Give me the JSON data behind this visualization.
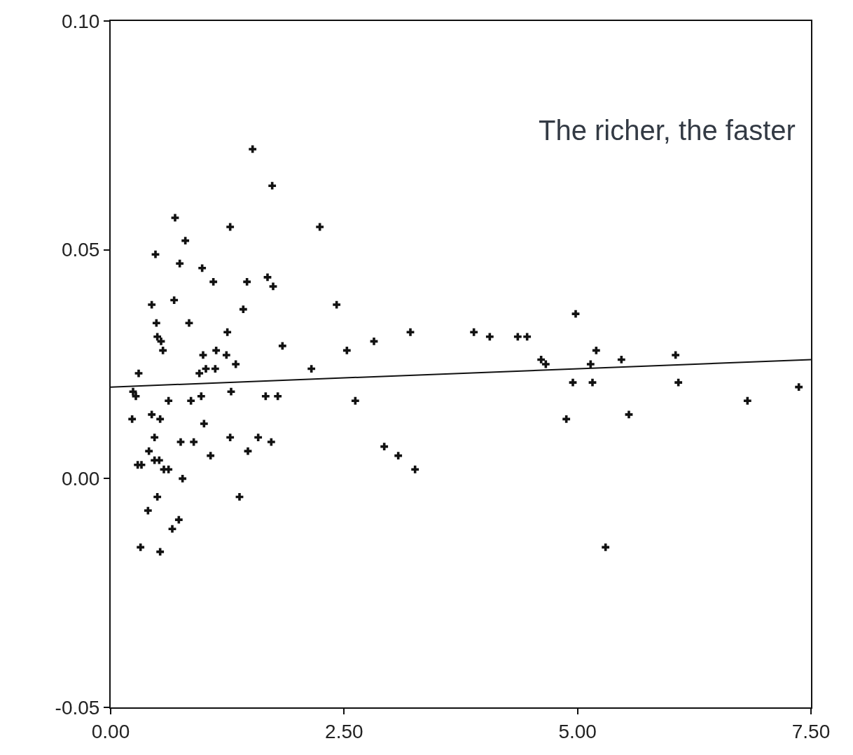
{
  "chart_data": {
    "type": "scatter",
    "marker": "cross",
    "annotations": [
      "The richer, the faster"
    ],
    "xlim": [
      0,
      7.5
    ],
    "ylim": [
      -0.05,
      0.1
    ],
    "xticks": [
      {
        "value": 0,
        "label": "0.00"
      },
      {
        "value": 2.5,
        "label": "2.50"
      },
      {
        "value": 5,
        "label": "5.00"
      },
      {
        "value": 7.5,
        "label": "7.50"
      }
    ],
    "yticks": [
      {
        "value": -0.05,
        "label": "-0.05"
      },
      {
        "value": 0,
        "label": "0.00"
      },
      {
        "value": 0.05,
        "label": "0.05"
      },
      {
        "value": 0.1,
        "label": "0.10"
      }
    ],
    "series": [
      {
        "color": "#111111",
        "x": [
          0.24,
          0.27,
          0.3,
          0.23,
          0.29,
          0.33,
          0.32,
          0.4,
          0.41,
          0.44,
          0.44,
          0.47,
          0.47,
          0.48,
          0.49,
          0.5,
          0.5,
          0.52,
          0.53,
          0.54,
          0.56,
          0.53,
          0.57,
          0.62,
          0.62,
          0.66,
          0.68,
          0.69,
          0.73,
          0.74,
          0.75,
          0.77,
          0.8,
          0.84,
          0.86,
          0.89,
          0.95,
          0.97,
          0.98,
          0.99,
          1.0,
          1.02,
          1.07,
          1.1,
          1.12,
          1.13,
          1.24,
          1.25,
          1.28,
          1.29,
          1.28,
          1.34,
          1.38,
          1.42,
          1.46,
          1.47,
          1.52,
          1.58,
          1.66,
          1.68,
          1.72,
          1.73,
          1.74,
          1.79,
          1.84,
          2.15,
          2.24,
          2.42,
          2.53,
          2.62,
          2.82,
          2.93,
          3.08,
          3.21,
          3.26,
          3.89,
          4.06,
          4.36,
          4.46,
          4.61,
          4.66,
          4.88,
          4.95,
          4.98,
          5.14,
          5.16,
          5.2,
          5.3,
          5.47,
          5.55,
          6.05,
          6.08,
          6.82,
          7.37
        ],
        "values": [
          0.019,
          0.018,
          0.023,
          0.013,
          0.003,
          0.003,
          -0.015,
          -0.007,
          0.006,
          0.038,
          0.014,
          0.004,
          0.009,
          0.049,
          0.034,
          -0.004,
          0.031,
          0.004,
          0.013,
          0.03,
          0.028,
          -0.016,
          0.002,
          0.002,
          0.017,
          -0.011,
          0.039,
          0.057,
          -0.009,
          0.047,
          0.008,
          0.0,
          0.052,
          0.034,
          0.017,
          0.008,
          0.023,
          0.018,
          0.046,
          0.027,
          0.012,
          0.024,
          0.005,
          0.043,
          0.024,
          0.028,
          0.027,
          0.032,
          0.055,
          0.019,
          0.009,
          0.025,
          -0.004,
          0.037,
          0.043,
          0.006,
          0.072,
          0.009,
          0.018,
          0.044,
          0.008,
          0.064,
          0.042,
          0.018,
          0.029,
          0.024,
          0.055,
          0.038,
          0.028,
          0.017,
          0.03,
          0.007,
          0.005,
          0.032,
          0.002,
          0.032,
          0.031,
          0.031,
          0.031,
          0.026,
          0.025,
          0.013,
          0.021,
          0.036,
          0.025,
          0.021,
          0.028,
          -0.015,
          0.026,
          0.014,
          0.027,
          0.021,
          0.017,
          0.02
        ]
      },
      {
        "type": "line",
        "marker": "none",
        "color": "#111111",
        "x": [
          0,
          7.5
        ],
        "values": [
          0.02,
          0.026
        ]
      }
    ]
  }
}
